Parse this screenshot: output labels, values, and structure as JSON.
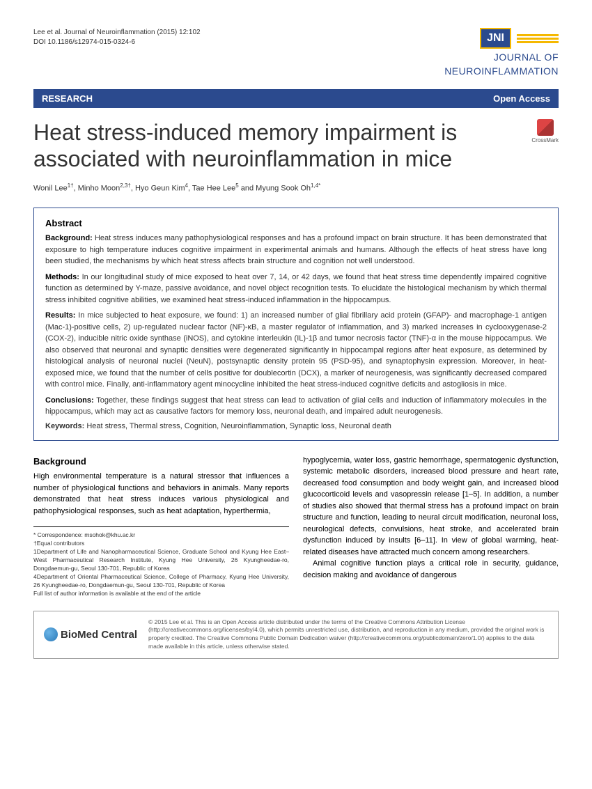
{
  "header": {
    "citation_line1": "Lee et al. Journal of Neuroinflammation  (2015) 12:102",
    "citation_line2": "DOI 10.1186/s12974-015-0324-6",
    "logo_abbr": "JNI",
    "journal_name_1": "JOURNAL OF",
    "journal_name_2": "NEUROINFLAMMATION"
  },
  "bar": {
    "left": "RESEARCH",
    "right": "Open Access"
  },
  "title": "Heat stress-induced memory impairment is associated with neuroinflammation in mice",
  "crossmark_label": "CrossMark",
  "authors_html": "Wonil Lee<sup>1†</sup>, Minho Moon<sup>2,3†</sup>, Hyo Geun Kim<sup>4</sup>, Tae Hee Lee<sup>5</sup> and Myung Sook Oh<sup>1,4*</sup>",
  "abstract": {
    "heading": "Abstract",
    "background_label": "Background:",
    "background": "Heat stress induces many pathophysiological responses and has a profound impact on brain structure. It has been demonstrated that exposure to high temperature induces cognitive impairment in experimental animals and humans. Although the effects of heat stress have long been studied, the mechanisms by which heat stress affects brain structure and cognition not well understood.",
    "methods_label": "Methods:",
    "methods": "In our longitudinal study of mice exposed to heat over 7, 14, or 42 days, we found that heat stress time dependently impaired cognitive function as determined by Y-maze, passive avoidance, and novel object recognition tests. To elucidate the histological mechanism by which thermal stress inhibited cognitive abilities, we examined heat stress-induced inflammation in the hippocampus.",
    "results_label": "Results:",
    "results": "In mice subjected to heat exposure, we found: 1) an increased number of glial fibrillary acid protein (GFAP)- and macrophage-1 antigen (Mac-1)-positive cells, 2) up-regulated nuclear factor (NF)-κB, a master regulator of inflammation, and 3) marked increases in cyclooxygenase-2 (COX-2), inducible nitric oxide synthase (iNOS), and cytokine interleukin (IL)-1β and tumor necrosis factor (TNF)-α in the mouse hippocampus. We also observed that neuronal and synaptic densities were degenerated significantly in hippocampal regions after heat exposure, as determined by histological analysis of neuronal nuclei (NeuN), postsynaptic density protein 95 (PSD-95), and synaptophysin expression. Moreover, in heat-exposed mice, we found that the number of cells positive for doublecortin (DCX), a marker of neurogenesis, was significantly decreased compared with control mice. Finally, anti-inflammatory agent minocycline inhibited the heat stress-induced cognitive deficits and astogliosis in mice.",
    "conclusions_label": "Conclusions:",
    "conclusions": "Together, these findings suggest that heat stress can lead to activation of glial cells and induction of inflammatory molecules in the hippocampus, which may act as causative factors for memory loss, neuronal death, and impaired adult neurogenesis.",
    "keywords_label": "Keywords:",
    "keywords": "Heat stress, Thermal stress, Cognition, Neuroinflammation, Synaptic loss, Neuronal death"
  },
  "body": {
    "background_heading": "Background",
    "col1_p1": "High environmental temperature is a natural stressor that influences a number of physiological functions and behaviors in animals. Many reports demonstrated that heat stress induces various physiological and pathophysiological responses, such as heat adaptation, hyperthermia,",
    "col2_p1": "hypoglycemia, water loss, gastric hemorrhage, spermatogenic dysfunction, systemic metabolic disorders, increased blood pressure and heart rate, decreased food consumption and body weight gain, and increased blood glucocorticoid levels and vasopressin release [1–5]. In addition, a number of studies also showed that thermal stress has a profound impact on brain structure and function, leading to neural circuit modification, neuronal loss, neurological defects, convulsions, heat stroke, and accelerated brain dysfunction induced by insults [6–11]. In view of global warming, heat-related diseases have attracted much concern among researchers.",
    "col2_p2": "Animal cognitive function plays a critical role in security, guidance, decision making and avoidance of dangerous"
  },
  "correspondence": {
    "line1": "* Correspondence: msohok@khu.ac.kr",
    "line2": "†Equal contributors",
    "line3": "1Department of Life and Nanopharmaceutical Science, Graduate School and Kyung Hee East–West Pharmaceutical Research Institute, Kyung Hee University, 26 Kyungheedae-ro, Dongdaemun-gu, Seoul 130-701, Republic of Korea",
    "line4": "4Department of Oriental Pharmaceutical Science, College of Pharmacy, Kyung Hee University, 26 Kyungheedae-ro, Dongdaemun-gu, Seoul 130-701, Republic of Korea",
    "line5": "Full list of author information is available at the end of the article"
  },
  "footer": {
    "bmc_text_1": "BioMed",
    "bmc_text_2": "Central",
    "license": "© 2015 Lee et al. This is an Open Access article distributed under the terms of the Creative Commons Attribution License (http://creativecommons.org/licenses/by/4.0), which permits unrestricted use, distribution, and reproduction in any medium, provided the original work is properly credited. The Creative Commons Public Domain Dedication waiver (http://creativecommons.org/publicdomain/zero/1.0/) applies to the data made available in this article, unless otherwise stated."
  }
}
